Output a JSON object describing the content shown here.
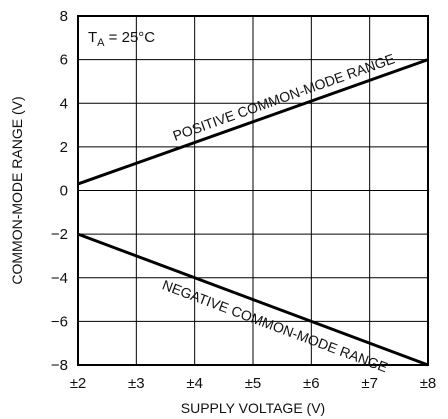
{
  "chart_data": {
    "type": "line",
    "xlabel": "SUPPLY VOLTAGE (V)",
    "ylabel": "COMMON-MODE RANGE (V)",
    "xlim": [
      2,
      8
    ],
    "ylim": [
      -8,
      8
    ],
    "x_ticks": [
      2,
      3,
      4,
      5,
      6,
      7,
      8
    ],
    "x_tick_labels": [
      "±2",
      "±3",
      "±4",
      "±5",
      "±6",
      "±7",
      "±8"
    ],
    "y_ticks": [
      -8,
      -6,
      -4,
      -2,
      0,
      2,
      4,
      6,
      8
    ],
    "y_tick_labels": [
      "−8",
      "−6",
      "−4",
      "−2",
      "0",
      "2",
      "4",
      "6",
      "8"
    ],
    "grid": true,
    "condition": {
      "main": "T",
      "sub": "A",
      "rest": " = 25°C"
    },
    "series": [
      {
        "name": "POSITIVE COMMON-MODE RANGE",
        "x": [
          2,
          8
        ],
        "y": [
          0.3,
          6.0
        ],
        "color": "#000000"
      },
      {
        "name": "NEGATIVE COMMON-MODE RANGE",
        "x": [
          2,
          8
        ],
        "y": [
          -2.0,
          -8.0
        ],
        "color": "#000000"
      }
    ]
  }
}
